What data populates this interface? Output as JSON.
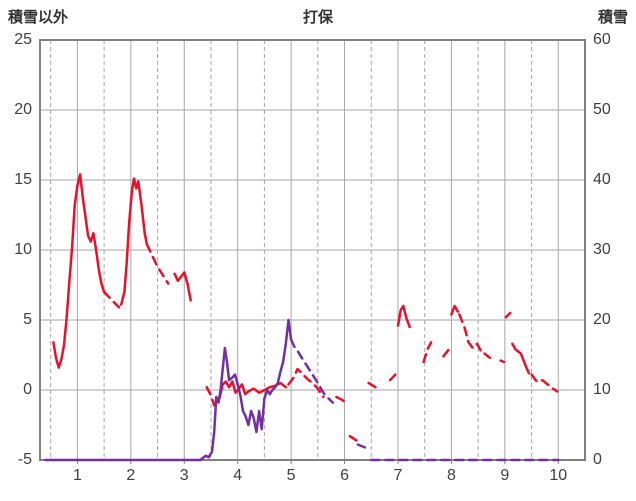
{
  "chart_data": {
    "type": "line",
    "title": "打保",
    "left_axis": {
      "label": "積雪以外",
      "min": -5,
      "max": 25,
      "ticks": [
        25,
        20,
        15,
        10,
        5,
        0,
        -5
      ]
    },
    "right_axis": {
      "label": "積雪",
      "min": 0,
      "max": 60,
      "ticks": [
        60,
        50,
        40,
        30,
        20,
        10,
        0
      ]
    },
    "x_axis": {
      "min": 0.3,
      "max": 10.5,
      "ticks": [
        1,
        2,
        3,
        4,
        5,
        6,
        7,
        8,
        9,
        10
      ],
      "minor_gridline_step": 0.5
    },
    "grid": {
      "major_color": "#a6a6a6",
      "frame_color": "#808080",
      "background": "#ffffff"
    },
    "legend": "none",
    "series": [
      {
        "id": "other-than-snow",
        "name": "積雪以外",
        "axis": "left",
        "color": "#e8112d",
        "segments": [
          {
            "style": "solid",
            "points": [
              [
                0.55,
                3.4
              ],
              [
                0.6,
                2.3
              ],
              [
                0.65,
                1.6
              ],
              [
                0.7,
                2.2
              ],
              [
                0.75,
                3.2
              ],
              [
                0.8,
                5.2
              ],
              [
                0.85,
                7.8
              ],
              [
                0.9,
                10.2
              ],
              [
                0.95,
                13.2
              ],
              [
                1.0,
                14.6
              ],
              [
                1.05,
                15.4
              ],
              [
                1.1,
                13.8
              ],
              [
                1.15,
                12.4
              ],
              [
                1.2,
                11.0
              ],
              [
                1.25,
                10.6
              ],
              [
                1.3,
                11.2
              ],
              [
                1.35,
                10.0
              ],
              [
                1.4,
                8.6
              ],
              [
                1.45,
                7.6
              ],
              [
                1.5,
                7.0
              ]
            ]
          },
          {
            "style": "dashed",
            "points": [
              [
                1.5,
                7.0
              ],
              [
                1.6,
                6.6
              ],
              [
                1.7,
                6.2
              ],
              [
                1.78,
                5.9
              ]
            ]
          },
          {
            "style": "solid",
            "points": [
              [
                1.82,
                6.1
              ],
              [
                1.88,
                7.0
              ],
              [
                1.92,
                9.0
              ],
              [
                1.97,
                12.0
              ],
              [
                2.02,
                14.2
              ],
              [
                2.06,
                15.1
              ],
              [
                2.1,
                14.4
              ],
              [
                2.14,
                14.9
              ],
              [
                2.2,
                13.2
              ],
              [
                2.26,
                11.2
              ],
              [
                2.3,
                10.4
              ]
            ]
          },
          {
            "style": "dashed",
            "points": [
              [
                2.3,
                10.4
              ],
              [
                2.4,
                9.6
              ],
              [
                2.5,
                8.8
              ],
              [
                2.6,
                8.2
              ],
              [
                2.7,
                7.6
              ]
            ]
          },
          {
            "style": "solid",
            "points": [
              [
                2.82,
                8.3
              ],
              [
                2.88,
                7.8
              ],
              [
                2.94,
                8.1
              ],
              [
                3.0,
                8.4
              ],
              [
                3.06,
                7.6
              ],
              [
                3.12,
                6.4
              ]
            ]
          },
          {
            "style": "dashed",
            "points": [
              [
                3.42,
                0.2
              ],
              [
                3.5,
                -0.4
              ],
              [
                3.56,
                -1.1
              ],
              [
                3.62,
                -0.7
              ]
            ]
          },
          {
            "style": "solid",
            "points": [
              [
                3.66,
                -0.6
              ],
              [
                3.72,
                0.4
              ],
              [
                3.78,
                0.6
              ],
              [
                3.84,
                0.2
              ],
              [
                3.9,
                0.6
              ],
              [
                3.96,
                -0.2
              ],
              [
                4.02,
                0.1
              ],
              [
                4.08,
                0.4
              ],
              [
                4.14,
                -0.3
              ],
              [
                4.2,
                -0.1
              ],
              [
                4.3,
                0.1
              ],
              [
                4.4,
                -0.2
              ],
              [
                4.5,
                0.0
              ],
              [
                4.6,
                0.2
              ],
              [
                4.7,
                0.3
              ],
              [
                4.8,
                0.5
              ],
              [
                4.9,
                0.2
              ]
            ]
          },
          {
            "style": "dashed",
            "points": [
              [
                4.95,
                0.4
              ],
              [
                5.05,
                0.9
              ],
              [
                5.12,
                1.5
              ],
              [
                5.2,
                1.2
              ],
              [
                5.3,
                0.8
              ],
              [
                5.4,
                0.5
              ],
              [
                5.5,
                0.1
              ],
              [
                5.6,
                -0.5
              ]
            ]
          },
          {
            "style": "dashed",
            "points": [
              [
                5.85,
                -0.5
              ],
              [
                5.95,
                -0.7
              ],
              [
                6.05,
                -1.0
              ]
            ]
          },
          {
            "style": "dashed",
            "points": [
              [
                6.1,
                -3.3
              ],
              [
                6.22,
                -3.6
              ]
            ]
          },
          {
            "style": "dashed",
            "points": [
              [
                6.45,
                0.5
              ],
              [
                6.58,
                0.2
              ]
            ]
          },
          {
            "style": "dashed",
            "points": [
              [
                6.85,
                0.7
              ],
              [
                6.95,
                1.1
              ]
            ]
          },
          {
            "style": "solid",
            "points": [
              [
                7.0,
                4.6
              ],
              [
                7.05,
                5.7
              ],
              [
                7.1,
                6.0
              ],
              [
                7.16,
                5.1
              ],
              [
                7.22,
                4.5
              ]
            ]
          },
          {
            "style": "dashed",
            "points": [
              [
                7.48,
                2.0
              ],
              [
                7.55,
                2.9
              ],
              [
                7.62,
                3.4
              ]
            ]
          },
          {
            "style": "dashed",
            "points": [
              [
                7.85,
                2.4
              ],
              [
                7.95,
                2.9
              ]
            ]
          },
          {
            "style": "solid",
            "points": [
              [
                8.0,
                5.4
              ],
              [
                8.06,
                6.0
              ],
              [
                8.12,
                5.6
              ]
            ]
          },
          {
            "style": "dashed",
            "points": [
              [
                8.15,
                5.4
              ],
              [
                8.25,
                4.4
              ],
              [
                8.32,
                3.4
              ],
              [
                8.4,
                3.0
              ],
              [
                8.48,
                3.3
              ],
              [
                8.55,
                2.8
              ]
            ]
          },
          {
            "style": "dashed",
            "points": [
              [
                8.62,
                2.6
              ],
              [
                8.72,
                2.3
              ]
            ]
          },
          {
            "style": "dashed",
            "points": [
              [
                8.92,
                2.1
              ],
              [
                8.98,
                2.0
              ]
            ]
          },
          {
            "style": "dashed",
            "points": [
              [
                9.02,
                5.2
              ],
              [
                9.1,
                5.5
              ]
            ]
          },
          {
            "style": "solid",
            "points": [
              [
                9.14,
                3.3
              ],
              [
                9.2,
                2.9
              ],
              [
                9.3,
                2.6
              ],
              [
                9.38,
                1.8
              ],
              [
                9.45,
                1.2
              ]
            ]
          },
          {
            "style": "dashed",
            "points": [
              [
                9.5,
                1.1
              ],
              [
                9.6,
                0.6
              ],
              [
                9.7,
                0.7
              ],
              [
                9.8,
                0.4
              ],
              [
                9.9,
                0.1
              ],
              [
                9.98,
                -0.1
              ]
            ]
          }
        ]
      },
      {
        "id": "snow-depth",
        "name": "積雪",
        "axis": "right",
        "color": "#7030a0",
        "segments": [
          {
            "style": "solid",
            "points": [
              [
                0.4,
                0
              ],
              [
                3.3,
                0
              ]
            ]
          },
          {
            "style": "solid",
            "points": [
              [
                3.3,
                0
              ],
              [
                3.4,
                0.6
              ],
              [
                3.46,
                0.4
              ],
              [
                3.52,
                1.2
              ],
              [
                3.56,
                4.0
              ],
              [
                3.6,
                9.0
              ],
              [
                3.64,
                8.2
              ],
              [
                3.68,
                10.0
              ],
              [
                3.72,
                13.0
              ],
              [
                3.76,
                16.0
              ],
              [
                3.8,
                14.0
              ],
              [
                3.84,
                11.4
              ],
              [
                3.9,
                11.8
              ],
              [
                3.95,
                12.2
              ],
              [
                4.0,
                10.8
              ],
              [
                4.05,
                9.2
              ],
              [
                4.1,
                7.0
              ],
              [
                4.15,
                6.2
              ],
              [
                4.2,
                5.0
              ],
              [
                4.25,
                7.0
              ],
              [
                4.3,
                6.0
              ],
              [
                4.35,
                4.0
              ],
              [
                4.4,
                7.0
              ],
              [
                4.45,
                4.4
              ],
              [
                4.5,
                8.8
              ],
              [
                4.55,
                10.0
              ],
              [
                4.6,
                9.4
              ],
              [
                4.65,
                10.0
              ],
              [
                4.7,
                10.4
              ],
              [
                4.75,
                11.0
              ],
              [
                4.8,
                12.6
              ],
              [
                4.85,
                14.0
              ],
              [
                4.9,
                16.6
              ],
              [
                4.95,
                20.0
              ],
              [
                5.0,
                17.2
              ]
            ]
          },
          {
            "style": "dashed",
            "points": [
              [
                5.0,
                17.2
              ],
              [
                5.06,
                16.2
              ],
              [
                5.12,
                15.6
              ],
              [
                5.2,
                14.6
              ],
              [
                5.3,
                13.4
              ],
              [
                5.4,
                12.2
              ],
              [
                5.5,
                11.0
              ],
              [
                5.56,
                10.2
              ],
              [
                5.62,
                9.4
              ],
              [
                5.7,
                8.8
              ],
              [
                5.78,
                8.2
              ]
            ]
          },
          {
            "style": "dashed",
            "points": [
              [
                6.25,
                2.2
              ],
              [
                6.38,
                1.8
              ]
            ]
          },
          {
            "style": "dashed",
            "points": [
              [
                6.5,
                0
              ],
              [
                10.0,
                0
              ]
            ]
          }
        ]
      }
    ]
  }
}
